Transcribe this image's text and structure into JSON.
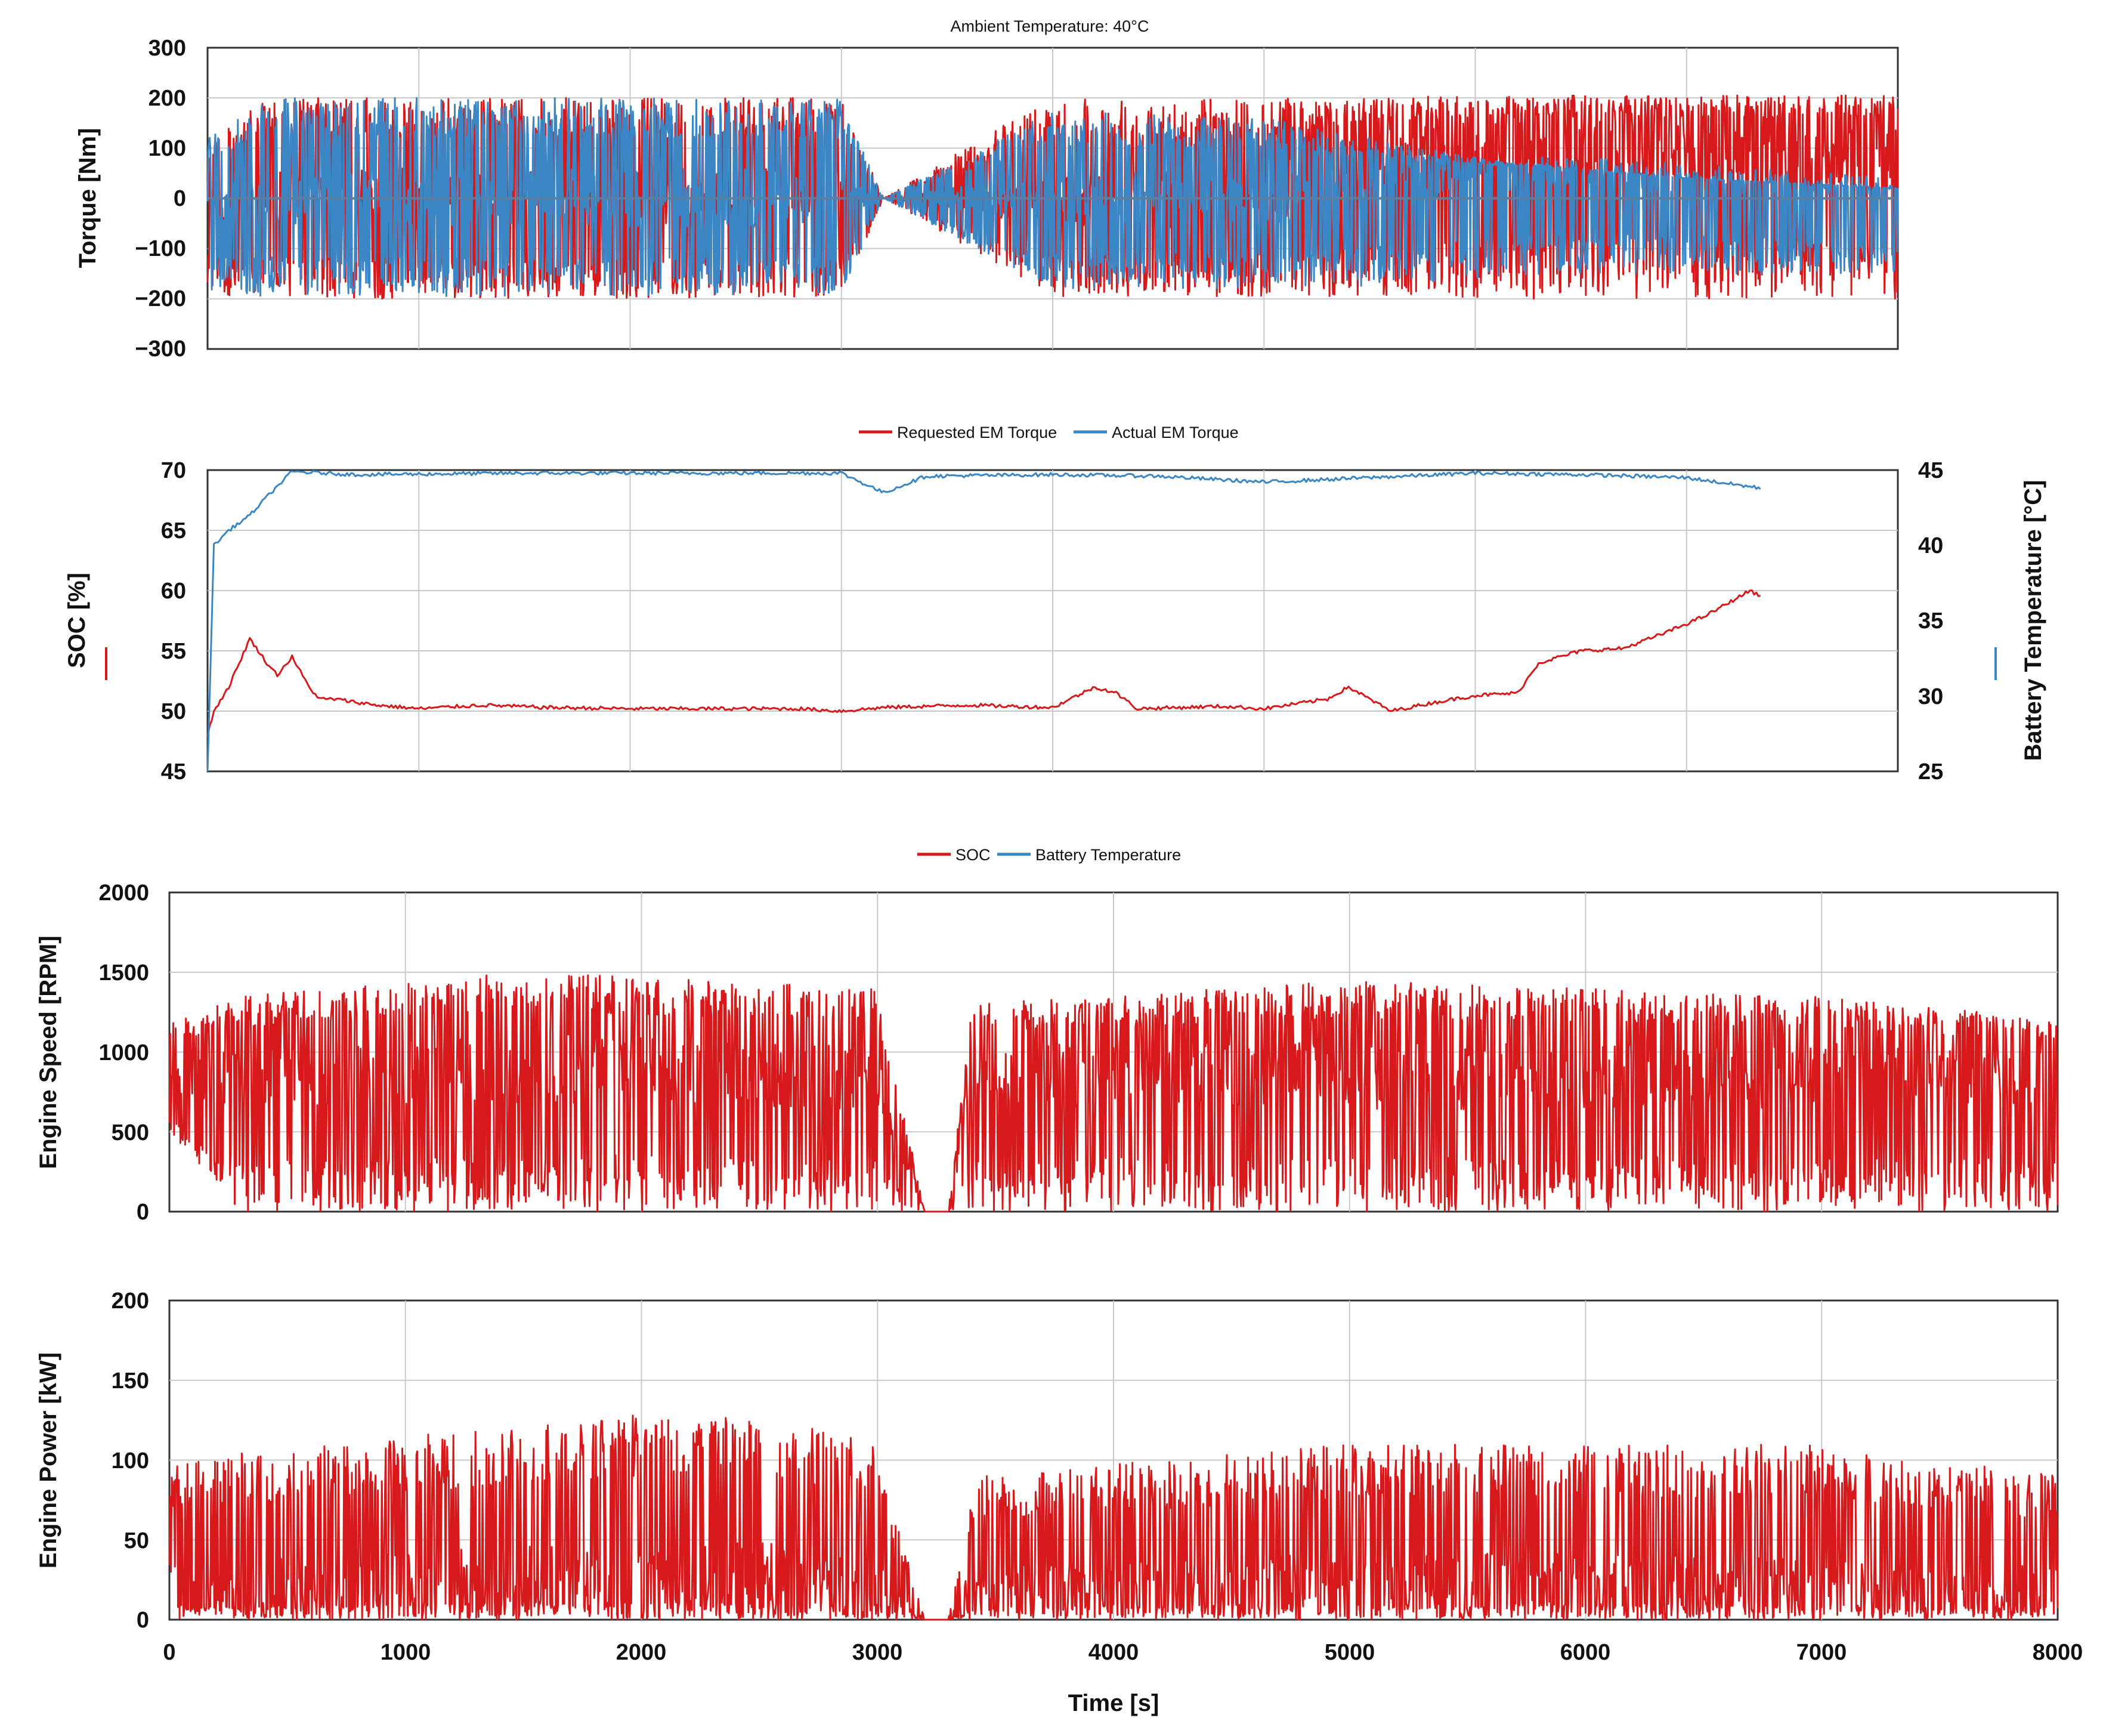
{
  "figure": {
    "ambient_title": "Ambient Temperature: 40°C",
    "xlabel": "Time [s]"
  },
  "colors": {
    "red": "#d7191c",
    "blue": "#3b86c4",
    "grid": "#c8c8c8",
    "frame": "#333333"
  },
  "chart_data": [
    {
      "id": "torque",
      "type": "line",
      "title": "Ambient Temperature: 40°C",
      "ylabel": "Torque [Nm]",
      "ylim": [
        -300,
        300
      ],
      "yticks": [
        300,
        200,
        100,
        0,
        -100,
        -200,
        -300
      ],
      "ytick_labels": [
        "300",
        "200",
        "100",
        "0",
        "−100",
        "−200",
        "−300"
      ],
      "xlim": [
        0,
        8000
      ],
      "x_gridlines": [
        1000,
        2000,
        3000,
        4000,
        5000,
        6000,
        7000
      ],
      "legend": [
        {
          "label": "Requested EM Torque",
          "color": "#d7191c"
        },
        {
          "label": "Actual EM Torque",
          "color": "#3b86c4"
        }
      ],
      "series": [
        {
          "name": "Requested EM Torque",
          "color": "#d7191c",
          "envelope": {
            "x": [
              0,
              300,
              1500,
              3000,
              3200,
              4000,
              5000,
              5500,
              6000,
              6500,
              7000,
              8000
            ],
            "upper": [
              120,
              200,
              200,
              200,
              0,
              205,
              200,
              200,
              205,
              205,
              205,
              205
            ],
            "lower": [
              -190,
              -200,
              -200,
              -195,
              0,
              -195,
              -195,
              -195,
              -200,
              -200,
              -200,
              -200
            ],
            "baseline": [
              0,
              0,
              0,
              0,
              0,
              0,
              0,
              80,
              90,
              100,
              90,
              80
            ]
          }
        },
        {
          "name": "Actual EM Torque",
          "color": "#3b86c4",
          "envelope": {
            "x": [
              0,
              300,
              1500,
              3000,
              3200,
              4000,
              5000,
              5500,
              6000,
              6500,
              7000,
              8000
            ],
            "upper": [
              120,
              200,
              200,
              200,
              0,
              175,
              160,
              120,
              80,
              60,
              40,
              20
            ],
            "lower": [
              -190,
              -195,
              -195,
              -190,
              0,
              -180,
              -180,
              -175,
              -160,
              -150,
              -150,
              -150
            ],
            "baseline": [
              0,
              0,
              0,
              0,
              0,
              0,
              0,
              20,
              50,
              50,
              40,
              20
            ]
          }
        }
      ]
    },
    {
      "id": "soc",
      "type": "line",
      "ylabel": "SOC [%]",
      "ylim": [
        45,
        70
      ],
      "yticks": [
        70,
        65,
        60,
        55,
        50,
        45
      ],
      "y2label": "Battery Temperature [°C]",
      "y2lim": [
        25,
        45
      ],
      "y2ticks": [
        45,
        40,
        35,
        30,
        25
      ],
      "xlim": [
        0,
        8000
      ],
      "x_gridlines": [
        1000,
        2000,
        3000,
        4000,
        5000,
        6000,
        7000
      ],
      "legend": [
        {
          "label": "SOC",
          "color": "#d7191c"
        },
        {
          "label": "Battery Temperature",
          "color": "#3b86c4"
        }
      ],
      "series": [
        {
          "name": "SOC",
          "color": "#d7191c",
          "axis": "left",
          "x": [
            0,
            30,
            100,
            200,
            280,
            330,
            400,
            480,
            530,
            600,
            800,
            1000,
            1300,
            1600,
            2000,
            2400,
            2800,
            3000,
            3200,
            3600,
            4000,
            4200,
            4300,
            4400,
            4800,
            5000,
            5300,
            5400,
            5600,
            5800,
            6000,
            6200,
            6300,
            6500,
            6700,
            6900,
            7100,
            7300,
            7350
          ],
          "y": [
            48,
            50,
            52,
            56,
            54,
            53,
            54.5,
            52,
            51,
            51,
            50.5,
            50.2,
            50.5,
            50.3,
            50.2,
            50.2,
            50.2,
            50.0,
            50.3,
            50.5,
            50.3,
            52,
            51.5,
            50.2,
            50.4,
            50.2,
            51,
            52,
            50,
            50.7,
            51.3,
            51.5,
            54,
            55,
            55.2,
            56.5,
            58,
            60,
            59.5
          ]
        },
        {
          "name": "Battery Temperature",
          "color": "#3b86c4",
          "axis": "right",
          "x": [
            0,
            30,
            100,
            200,
            300,
            400,
            700,
            1500,
            2500,
            3000,
            3200,
            3400,
            4000,
            4500,
            5000,
            5500,
            6000,
            6500,
            7000,
            7350
          ],
          "y": [
            25,
            40,
            41,
            42,
            43.5,
            44.9,
            44.7,
            44.8,
            44.8,
            44.8,
            43.5,
            44.6,
            44.7,
            44.6,
            44.2,
            44.5,
            44.8,
            44.7,
            44.5,
            43.8
          ]
        }
      ]
    },
    {
      "id": "engine_speed",
      "type": "line",
      "ylabel": "Engine Speed [RPM]",
      "ylim": [
        0,
        2000
      ],
      "yticks": [
        2000,
        1500,
        1000,
        500,
        0
      ],
      "xlim": [
        0,
        8000
      ],
      "x_gridlines": [
        1000,
        2000,
        3000,
        4000,
        5000,
        6000,
        7000
      ],
      "series": [
        {
          "name": "Engine Speed",
          "color": "#d7191c",
          "envelope": {
            "x": [
              0,
              300,
              1500,
              3000,
              3200,
              3300,
              3400,
              5000,
              6000,
              7000,
              8000
            ],
            "upper": [
              1200,
              1350,
              1500,
              1400,
              0,
              0,
              1300,
              1450,
              1400,
              1350,
              1200
            ],
            "lower": [
              500,
              0,
              0,
              0,
              0,
              0,
              0,
              0,
              0,
              0,
              0
            ],
            "baseline": [
              800,
              850,
              900,
              850,
              0,
              0,
              850,
              850,
              850,
              850,
              850
            ]
          }
        }
      ]
    },
    {
      "id": "engine_power",
      "type": "line",
      "ylabel": "Engine Power [kW]",
      "ylim": [
        0,
        200
      ],
      "yticks": [
        200,
        150,
        100,
        50,
        0
      ],
      "xlabel": "Time [s]",
      "xlim": [
        0,
        8000
      ],
      "xticks": [
        0,
        1000,
        2000,
        3000,
        4000,
        5000,
        6000,
        7000,
        8000
      ],
      "x_gridlines": [
        1000,
        2000,
        3000,
        4000,
        5000,
        6000,
        7000
      ],
      "series": [
        {
          "name": "Engine Power",
          "color": "#d7191c",
          "envelope": {
            "x": [
              0,
              1000,
              2000,
              2500,
              3000,
              3200,
              3300,
              3400,
              5000,
              6000,
              7000,
              8000
            ],
            "upper": [
              100,
              115,
              130,
              130,
              110,
              0,
              0,
              90,
              110,
              110,
              110,
              90
            ],
            "lower": [
              0,
              0,
              0,
              0,
              0,
              0,
              0,
              0,
              0,
              0,
              0,
              0
            ],
            "baseline": [
              20,
              25,
              30,
              30,
              25,
              0,
              0,
              20,
              25,
              25,
              25,
              20
            ]
          }
        }
      ]
    }
  ]
}
